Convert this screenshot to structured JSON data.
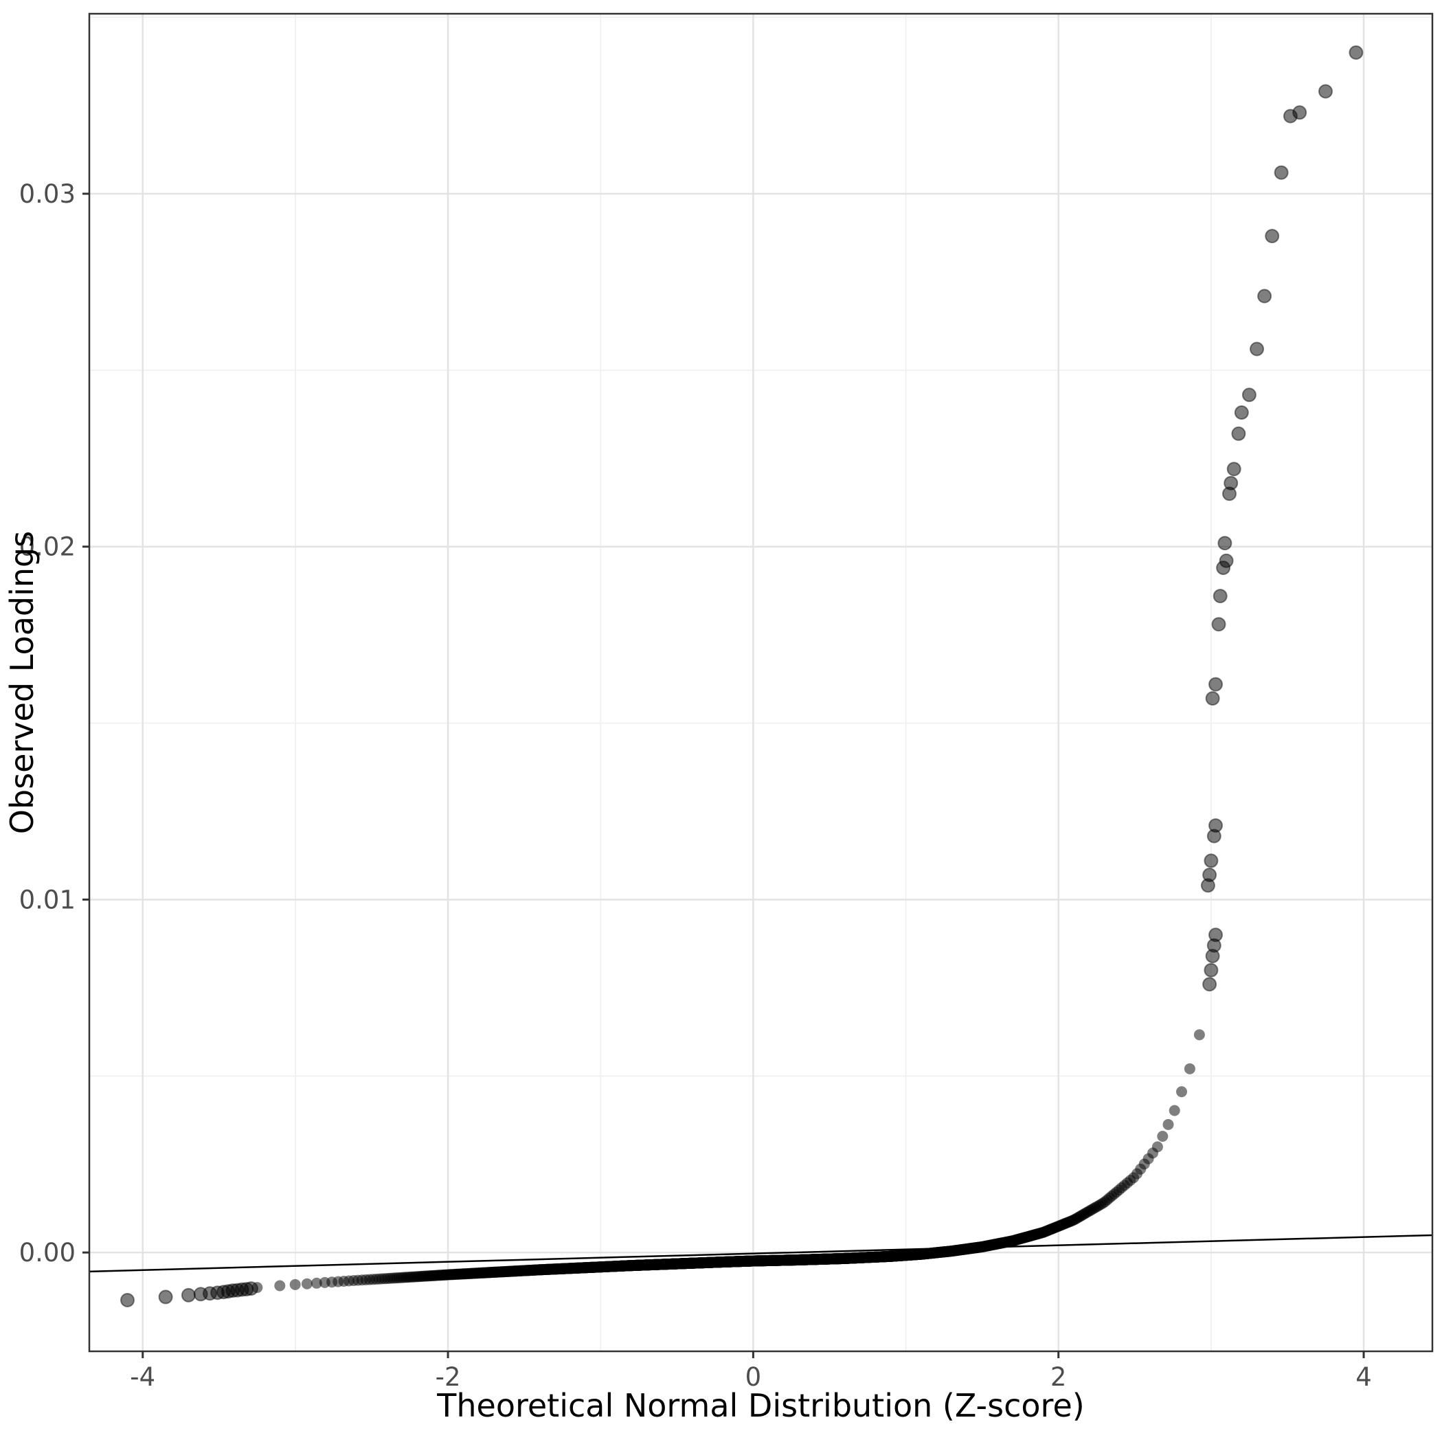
{
  "chart_data": {
    "type": "scatter",
    "title": "",
    "xlabel": "Theoretical Normal Distribution (Z-score)",
    "ylabel": "Observed Loadings",
    "xlim": [
      -4.35,
      4.45
    ],
    "ylim": [
      -0.0028,
      0.0351
    ],
    "grid": true,
    "legend": "none",
    "x_ticks": {
      "values": [
        -4,
        -2,
        0,
        2,
        4
      ],
      "labels": [
        "-4",
        "-2",
        "0",
        "2",
        "4"
      ],
      "minor": [
        -3,
        -1,
        1,
        3
      ]
    },
    "y_ticks": {
      "values": [
        0,
        0.01,
        0.02,
        0.03
      ],
      "labels": [
        "0.00",
        "0.01",
        "0.02",
        "0.03"
      ],
      "minor": [
        0.005,
        0.015,
        0.025,
        0.035
      ]
    },
    "reference_line": {
      "slope": 0.000117,
      "intercept": -3e-05
    },
    "series": {
      "dense": {
        "name": "qq-dense-band",
        "count": 2600,
        "z_range": [
          -3.3,
          2.98
        ],
        "curve": [
          [
            -3.3,
            -0.00101
          ],
          [
            -3.1,
            -0.00094
          ],
          [
            -2.9,
            -0.00088
          ],
          [
            -2.6,
            -0.00079
          ],
          [
            -2.3,
            -0.00071
          ],
          [
            -2.0,
            -0.00063
          ],
          [
            -1.7,
            -0.00056
          ],
          [
            -1.4,
            -0.00049
          ],
          [
            -1.1,
            -0.00043
          ],
          [
            -0.8,
            -0.00037
          ],
          [
            -0.5,
            -0.00032
          ],
          [
            -0.2,
            -0.00027
          ],
          [
            0.0,
            -0.00024
          ],
          [
            0.3,
            -0.00021
          ],
          [
            0.6,
            -0.00017
          ],
          [
            0.9,
            -0.00011
          ],
          [
            1.1,
            -5e-05
          ],
          [
            1.3,
            4e-05
          ],
          [
            1.5,
            0.00016
          ],
          [
            1.7,
            0.00033
          ],
          [
            1.9,
            0.00057
          ],
          [
            2.1,
            0.00092
          ],
          [
            2.3,
            0.00142
          ],
          [
            2.5,
            0.00215
          ],
          [
            2.65,
            0.003
          ],
          [
            2.75,
            0.0039
          ],
          [
            2.85,
            0.00505
          ],
          [
            2.92,
            0.0061
          ],
          [
            2.96,
            0.0069
          ],
          [
            2.98,
            0.00735
          ]
        ]
      },
      "left_tail": {
        "name": "left-tail-outliers",
        "points": [
          [
            -4.1,
            -0.00135
          ],
          [
            -3.85,
            -0.00126
          ],
          [
            -3.7,
            -0.00121
          ],
          [
            -3.62,
            -0.00118
          ],
          [
            -3.56,
            -0.00116
          ],
          [
            -3.51,
            -0.00114
          ],
          [
            -3.47,
            -0.00112
          ],
          [
            -3.44,
            -0.0011
          ],
          [
            -3.41,
            -0.00108
          ],
          [
            -3.38,
            -0.00107
          ],
          [
            -3.35,
            -0.00105
          ],
          [
            -3.32,
            -0.00104
          ],
          [
            -3.29,
            -0.00102
          ]
        ]
      },
      "outliers": {
        "name": "upper-outliers",
        "points": [
          [
            2.99,
            0.0076
          ],
          [
            3.0,
            0.008
          ],
          [
            3.01,
            0.0084
          ],
          [
            3.02,
            0.0087
          ],
          [
            3.03,
            0.009
          ],
          [
            2.98,
            0.0104
          ],
          [
            2.99,
            0.0107
          ],
          [
            3.0,
            0.0111
          ],
          [
            3.02,
            0.0118
          ],
          [
            3.03,
            0.0121
          ],
          [
            3.01,
            0.0157
          ],
          [
            3.03,
            0.0161
          ],
          [
            3.05,
            0.0178
          ],
          [
            3.06,
            0.0186
          ],
          [
            3.08,
            0.0194
          ],
          [
            3.1,
            0.0196
          ],
          [
            3.09,
            0.0201
          ],
          [
            3.12,
            0.0215
          ],
          [
            3.13,
            0.0218
          ],
          [
            3.15,
            0.0222
          ],
          [
            3.18,
            0.0232
          ],
          [
            3.2,
            0.0238
          ],
          [
            3.25,
            0.0243
          ],
          [
            3.3,
            0.0256
          ],
          [
            3.35,
            0.0271
          ],
          [
            3.4,
            0.0288
          ],
          [
            3.46,
            0.0306
          ],
          [
            3.52,
            0.0322
          ],
          [
            3.58,
            0.0323
          ],
          [
            3.75,
            0.0329
          ],
          [
            3.95,
            0.034
          ]
        ]
      }
    },
    "style": {
      "background": "#FFFFFF",
      "panel_border": "#333333",
      "grid_major": "#E3E3E3",
      "grid_minor": "#F0F0F0",
      "point_color": "#000000",
      "point_opacity": 0.5,
      "reference_line_color": "#000000",
      "tick_label_color": "#4D4D4D",
      "axis_title_color": "#000000"
    }
  }
}
